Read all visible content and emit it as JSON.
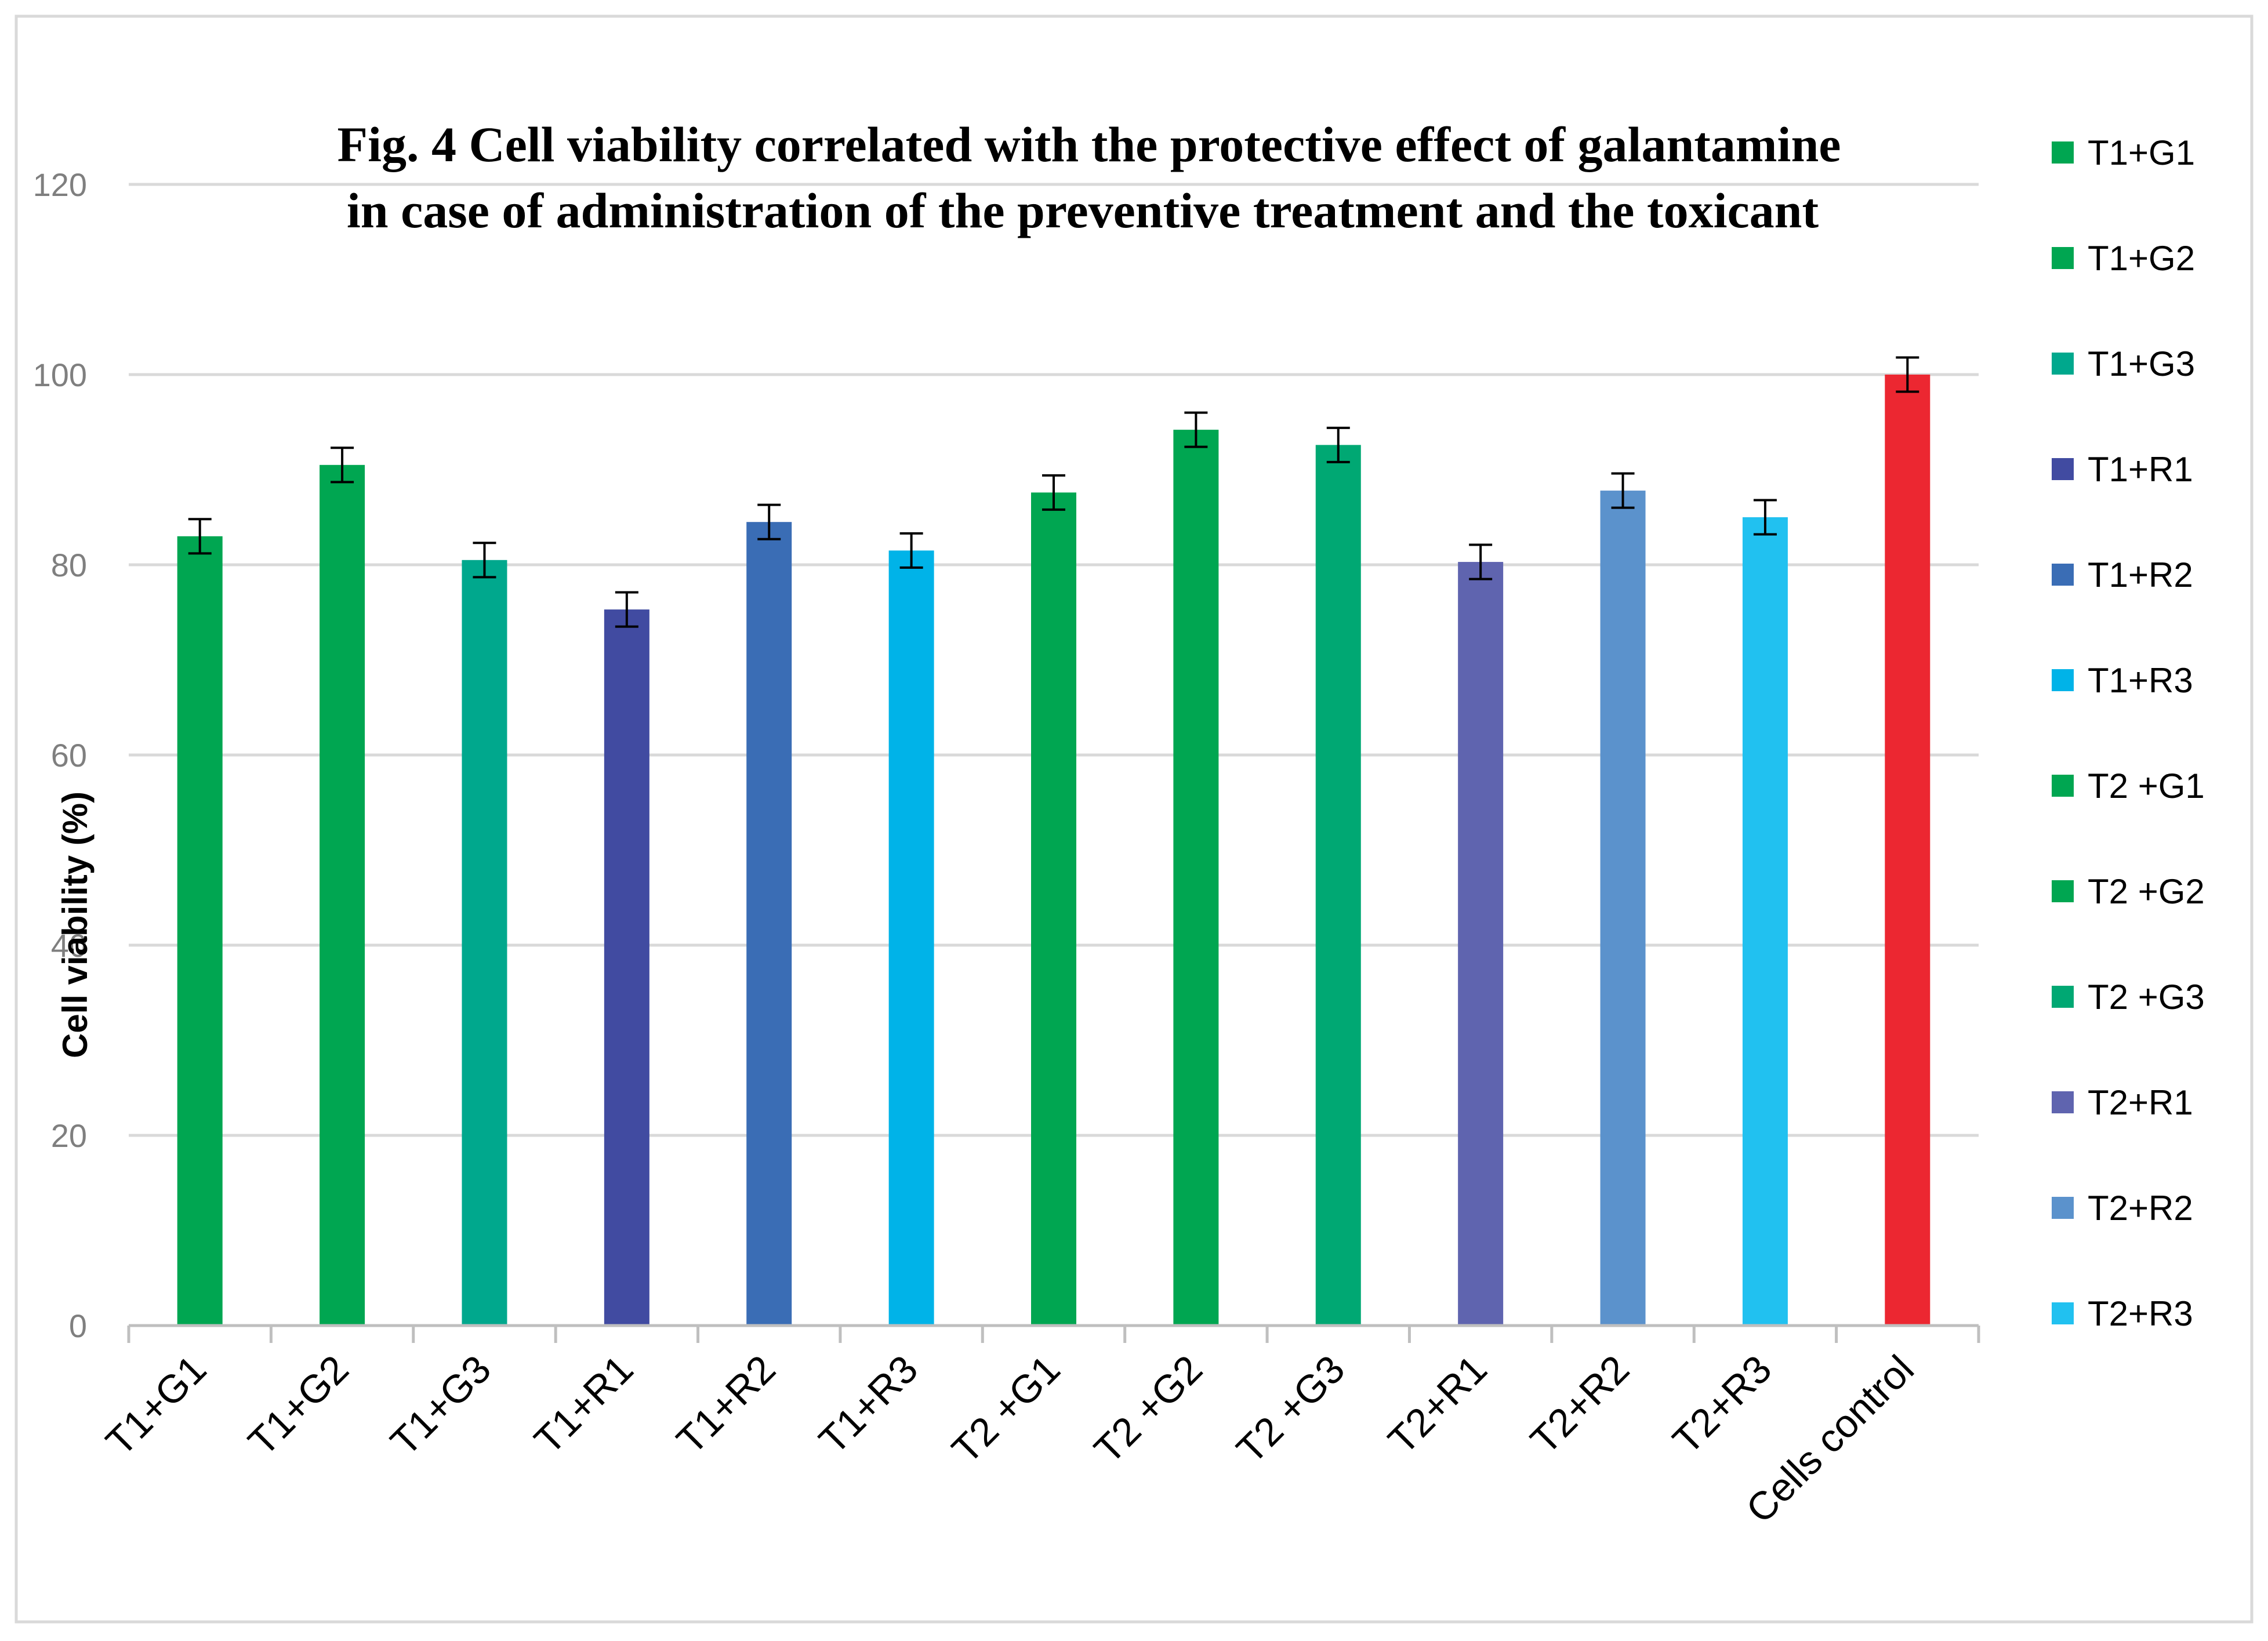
{
  "chart_data": {
    "type": "bar",
    "title": "Fig. 4 Cell viability correlated with the protective effect of galantamine",
    "subtitle": "in case of administration of the preventive treatment and the toxicant",
    "xlabel": "",
    "ylabel": "Cell viability (%)",
    "ylim": [
      0,
      120
    ],
    "yticks": [
      0,
      20,
      40,
      60,
      80,
      100,
      120
    ],
    "grid": true,
    "legend_position": "right",
    "categories": [
      "T1+G1",
      "T1+G2",
      "T1+G3",
      "T1+R1",
      "T1+R2",
      "T1+R3",
      "T2 +G1",
      "T2 +G2",
      "T2 +G3",
      "T2+R1",
      "T2+R2",
      "T2+R3",
      "Cells control"
    ],
    "values": [
      83,
      90.5,
      80.5,
      75.3,
      84.5,
      81.5,
      87.6,
      94.2,
      92.6,
      80.3,
      87.8,
      85,
      100
    ],
    "errors": [
      1.8,
      1.8,
      1.8,
      1.8,
      1.8,
      1.8,
      1.8,
      1.8,
      1.8,
      1.8,
      1.8,
      1.8,
      1.8
    ],
    "colors": [
      "#00A651",
      "#00A651",
      "#00A88D",
      "#414BA1",
      "#3A6DB5",
      "#00B3E8",
      "#00A651",
      "#00A651",
      "#00A873",
      "#5F64AF",
      "#5B92CC",
      "#21C1F0",
      "#EC2731"
    ],
    "legend": [
      "T1+G1",
      "T1+G2",
      "T1+G3",
      "T1+R1",
      "T1+R2",
      "T1+R3",
      "T2 +G1",
      "T2 +G2",
      "T2 +G3",
      "T2+R1",
      "T2+R2",
      "T2+R3"
    ]
  }
}
